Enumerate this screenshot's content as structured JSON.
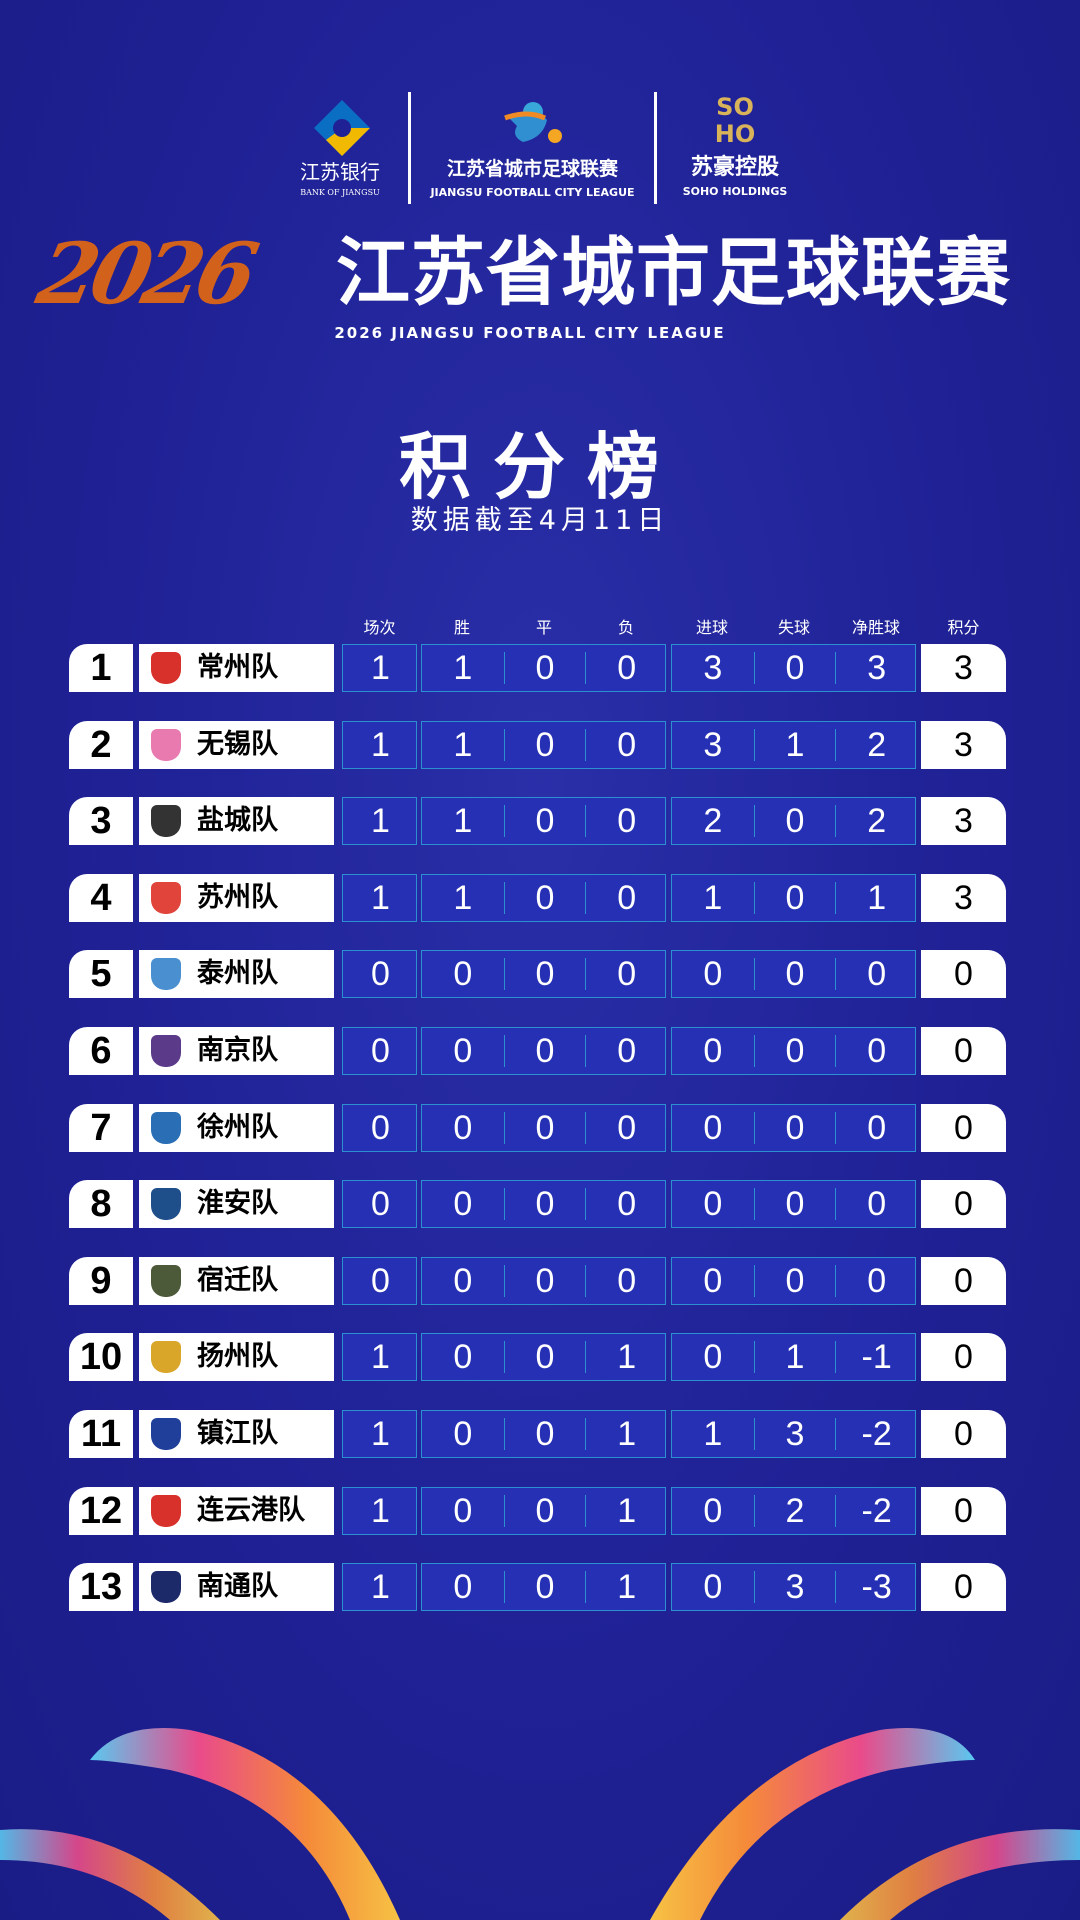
{
  "sponsors": {
    "bank": {
      "cn": "江苏银行",
      "en": "BANK OF JIANGSU"
    },
    "league": {
      "cn": "江苏省城市足球联赛",
      "en": "JIANGSU FOOTBALL CITY LEAGUE"
    },
    "soho": {
      "mark": "SOHO",
      "cn": "苏豪控股",
      "en": "SOHO HOLDINGS"
    }
  },
  "header": {
    "year": "2026",
    "title": "江苏省城市足球联赛",
    "subtitle": "2026  JIANGSU FOOTBALL CITY LEAGUE",
    "board_title": "积分榜",
    "date_note": "数据截至4月11日"
  },
  "columns": [
    "场次",
    "胜",
    "平",
    "负",
    "进球",
    "失球",
    "净胜球",
    "积分"
  ],
  "colors": {
    "background": "#1f2195",
    "cell": "#2530b4",
    "cell_border": "#2b8fd0",
    "accent": "#d2611c"
  },
  "rows": [
    {
      "rank": "1",
      "team": "常州队",
      "crest": "#d8312b",
      "played": "1",
      "w": "1",
      "d": "0",
      "l": "0",
      "gf": "3",
      "ga": "0",
      "gd": "3",
      "pts": "3"
    },
    {
      "rank": "2",
      "team": "无锡队",
      "crest": "#e87ab0",
      "played": "1",
      "w": "1",
      "d": "0",
      "l": "0",
      "gf": "3",
      "ga": "1",
      "gd": "2",
      "pts": "3"
    },
    {
      "rank": "3",
      "team": "盐城队",
      "crest": "#333333",
      "played": "1",
      "w": "1",
      "d": "0",
      "l": "0",
      "gf": "2",
      "ga": "0",
      "gd": "2",
      "pts": "3"
    },
    {
      "rank": "4",
      "team": "苏州队",
      "crest": "#e0443a",
      "played": "1",
      "w": "1",
      "d": "0",
      "l": "0",
      "gf": "1",
      "ga": "0",
      "gd": "1",
      "pts": "3"
    },
    {
      "rank": "5",
      "team": "泰州队",
      "crest": "#4a90d0",
      "played": "0",
      "w": "0",
      "d": "0",
      "l": "0",
      "gf": "0",
      "ga": "0",
      "gd": "0",
      "pts": "0"
    },
    {
      "rank": "6",
      "team": "南京队",
      "crest": "#5b3a8a",
      "played": "0",
      "w": "0",
      "d": "0",
      "l": "0",
      "gf": "0",
      "ga": "0",
      "gd": "0",
      "pts": "0"
    },
    {
      "rank": "7",
      "team": "徐州队",
      "crest": "#2a6fb5",
      "played": "0",
      "w": "0",
      "d": "0",
      "l": "0",
      "gf": "0",
      "ga": "0",
      "gd": "0",
      "pts": "0"
    },
    {
      "rank": "8",
      "team": "淮安队",
      "crest": "#1f4f8a",
      "played": "0",
      "w": "0",
      "d": "0",
      "l": "0",
      "gf": "0",
      "ga": "0",
      "gd": "0",
      "pts": "0"
    },
    {
      "rank": "9",
      "team": "宿迁队",
      "crest": "#4d5a3a",
      "played": "0",
      "w": "0",
      "d": "0",
      "l": "0",
      "gf": "0",
      "ga": "0",
      "gd": "0",
      "pts": "0"
    },
    {
      "rank": "10",
      "team": "扬州队",
      "crest": "#d9a62a",
      "played": "1",
      "w": "0",
      "d": "0",
      "l": "1",
      "gf": "0",
      "ga": "1",
      "gd": "-1",
      "pts": "0"
    },
    {
      "rank": "11",
      "team": "镇江队",
      "crest": "#1f3f9a",
      "played": "1",
      "w": "0",
      "d": "0",
      "l": "1",
      "gf": "1",
      "ga": "3",
      "gd": "-2",
      "pts": "0"
    },
    {
      "rank": "12",
      "team": "连云港队",
      "crest": "#d8312b",
      "played": "1",
      "w": "0",
      "d": "0",
      "l": "1",
      "gf": "0",
      "ga": "2",
      "gd": "-2",
      "pts": "0"
    },
    {
      "rank": "13",
      "team": "南通队",
      "crest": "#1c2a6a",
      "played": "1",
      "w": "0",
      "d": "0",
      "l": "1",
      "gf": "0",
      "ga": "3",
      "gd": "-3",
      "pts": "0"
    }
  ]
}
